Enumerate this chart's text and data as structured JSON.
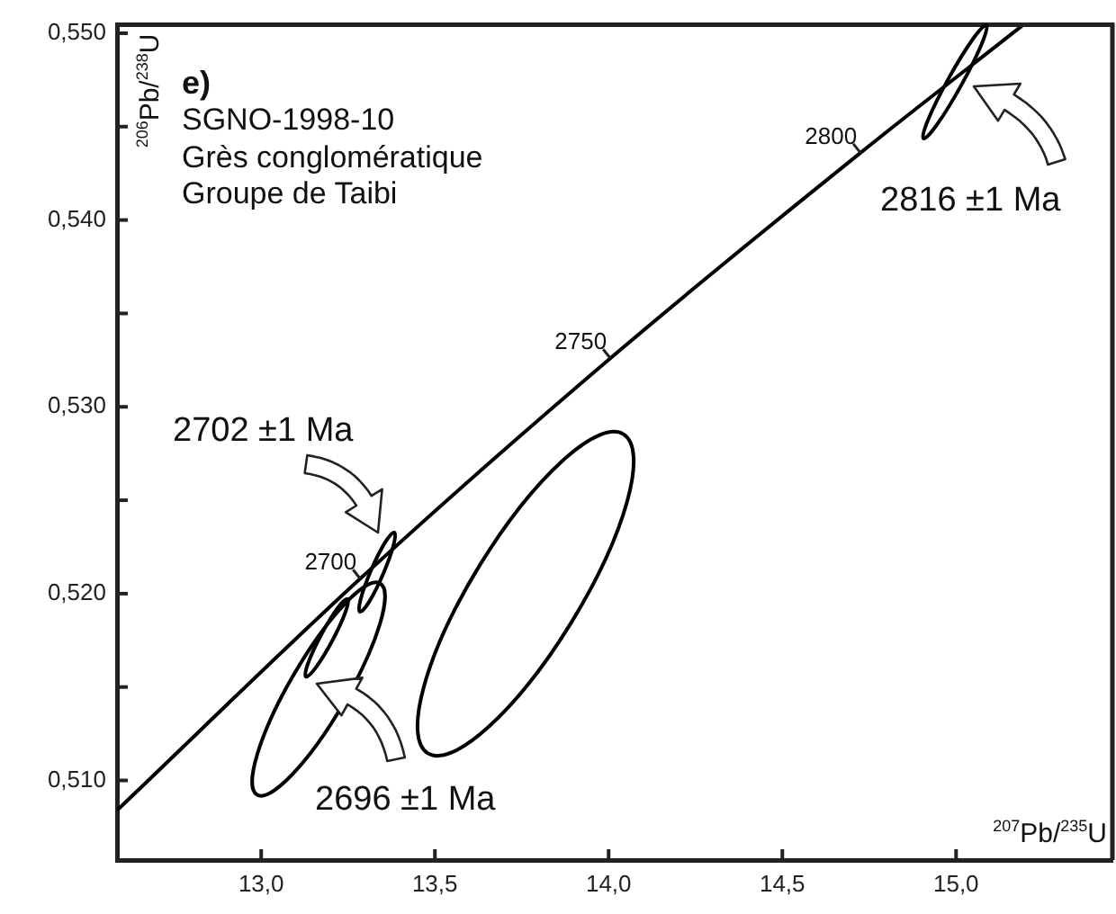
{
  "chart_data": {
    "type": "line",
    "title": "e)",
    "xlabel": "$^{207}$Pb/$^{235}$U",
    "ylabel": "$^{206}$Pb/$^{238}$U",
    "xlim": [
      12.585,
      15.45
    ],
    "ylim": [
      0.50574,
      0.55045
    ],
    "xticks": [
      {
        "value": 13.0,
        "label": "13,0"
      },
      {
        "value": 13.5,
        "label": "13,5"
      },
      {
        "value": 14.0,
        "label": "14,0"
      },
      {
        "value": 14.5,
        "label": "14,5"
      },
      {
        "value": 15.0,
        "label": "15,0"
      }
    ],
    "yticks": [
      {
        "value": 0.51,
        "label": "0,510"
      },
      {
        "value": 0.515,
        "label": null
      },
      {
        "value": 0.52,
        "label": "0,520"
      },
      {
        "value": 0.525,
        "label": null
      },
      {
        "value": 0.53,
        "label": "0,530"
      },
      {
        "value": 0.535,
        "label": null
      },
      {
        "value": 0.54,
        "label": "0,540"
      },
      {
        "value": 0.545,
        "label": null
      },
      {
        "value": 0.55,
        "label": "0,550"
      }
    ],
    "grid": false,
    "legend": false,
    "marker": "none",
    "line_style": "solid",
    "series": [
      {
        "color": "#000000",
        "x": [
          12.585,
          13.285,
          14.005,
          14.725,
          15.19
        ],
        "values": [
          0.5084,
          0.5208,
          0.5326,
          0.5436,
          0.5504
        ]
      }
    ],
    "annotations": [
      "SGNO-1998-10",
      "Grès conglomératique",
      "Groupe de Taibi",
      "2702 ±1 Ma",
      "2696 ±1 Ma",
      "2816 ±1 Ma",
      {
        "text": "2700",
        "x": 13.285,
        "y": 0.5208
      },
      {
        "text": "2750",
        "x": 14.005,
        "y": 0.5326
      },
      {
        "text": "2800",
        "x": 14.725,
        "y": 0.5436
      }
    ]
  }
}
